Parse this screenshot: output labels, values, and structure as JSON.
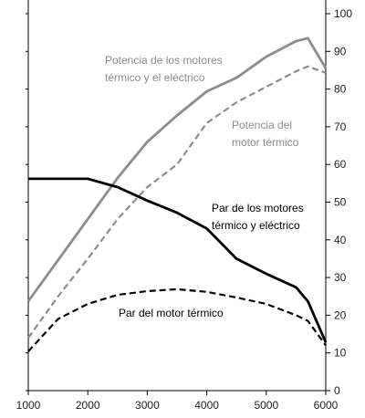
{
  "chart_data": {
    "type": "line",
    "x": [
      1000,
      1500,
      2000,
      2500,
      3000,
      3500,
      4000,
      4500,
      5000,
      5500,
      5700,
      6000
    ],
    "series": [
      {
        "name": [
          "Potencia de los motores",
          "térmico y el eléctrico"
        ],
        "color": "#8c8c8c",
        "dashed": false,
        "values": [
          23.7,
          34.6,
          45.5,
          56.4,
          66,
          73,
          79.4,
          83,
          88.6,
          92.7,
          93.5,
          85.5
        ]
      },
      {
        "name": [
          "Potencia del",
          "motor térmico"
        ],
        "color": "#8c8c8c",
        "dashed": true,
        "values": [
          14,
          25,
          35,
          45.5,
          54,
          60,
          71,
          76.5,
          80.6,
          84.7,
          86,
          84.3
        ]
      },
      {
        "name": [
          "Par de los motores",
          "térmico y eléctrico"
        ],
        "color": "#000000",
        "dashed": false,
        "values": [
          56.2,
          56.2,
          56.2,
          54,
          50.4,
          47.2,
          43,
          35,
          31,
          27.4,
          23.7,
          12.8
        ]
      },
      {
        "name": [
          "Par del motor térmico"
        ],
        "color": "#000000",
        "dashed": true,
        "values": [
          10.4,
          19,
          23,
          25.4,
          26.4,
          26.9,
          26.2,
          24.7,
          23,
          20,
          18.5,
          12
        ]
      }
    ],
    "xlim": [
      1000,
      6000
    ],
    "xticks": [
      1000,
      2000,
      3000,
      4000,
      5000,
      6000
    ],
    "ylim": [
      0,
      100
    ],
    "yticks": [
      0,
      10,
      20,
      30,
      40,
      50,
      60,
      70,
      80,
      90,
      100
    ]
  }
}
